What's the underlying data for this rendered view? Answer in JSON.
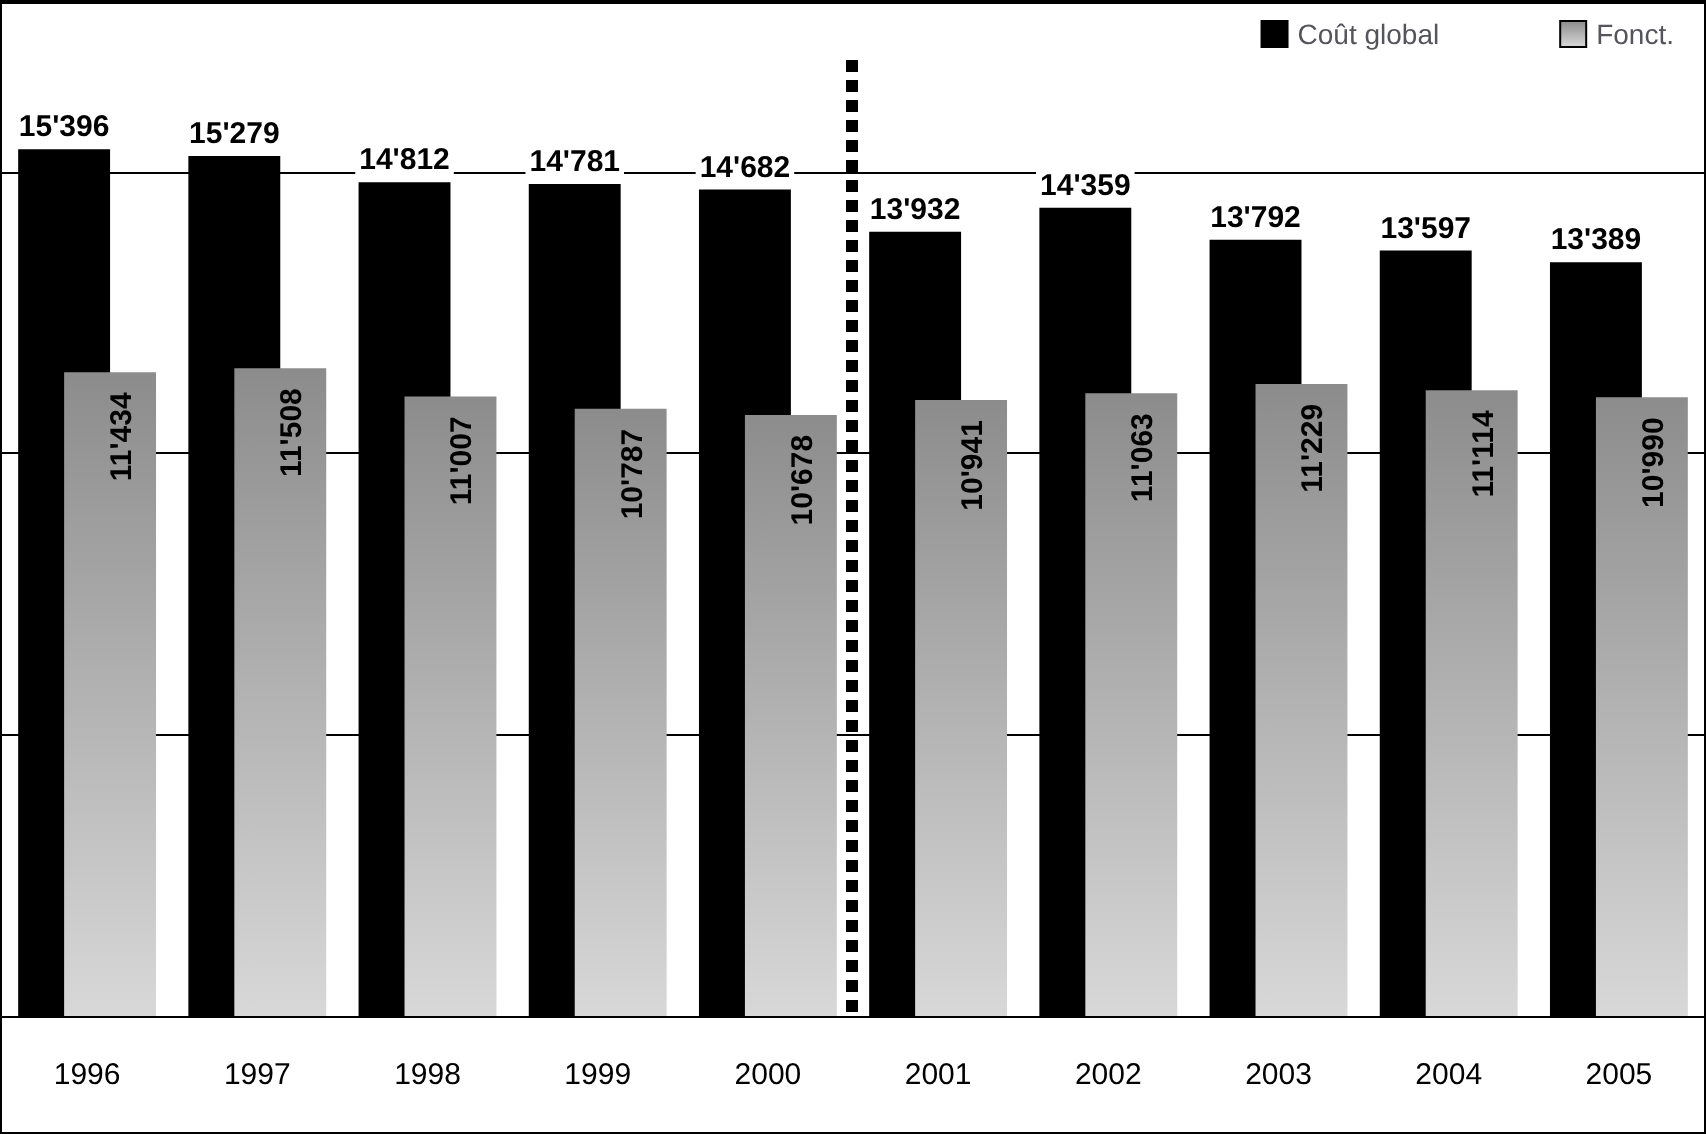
{
  "chart_data": {
    "type": "bar",
    "categories": [
      "1996",
      "1997",
      "1998",
      "1999",
      "2000",
      "2001",
      "2002",
      "2003",
      "2004",
      "2005"
    ],
    "series": [
      {
        "name": "Coût global",
        "color": "#000000",
        "values": [
          15396,
          15279,
          14812,
          14781,
          14682,
          13932,
          14359,
          13792,
          13597,
          13389
        ],
        "value_labels": [
          "15'396",
          "15'279",
          "14'812",
          "14'781",
          "14'682",
          "13'932",
          "14'359",
          "13'792",
          "13'597",
          "13'389"
        ]
      },
      {
        "name": "Fonct.",
        "color": "#8c8c8c",
        "values": [
          11434,
          11508,
          11007,
          10787,
          10678,
          10941,
          11063,
          11229,
          11114,
          10990
        ],
        "value_labels": [
          "11'434",
          "11'508",
          "11'007",
          "10'787",
          "10'678",
          "10'941",
          "11'063",
          "11'229",
          "11'114",
          "10'990"
        ]
      }
    ],
    "tick_labels": "x",
    "grid": "y",
    "legend": "top right"
  }
}
